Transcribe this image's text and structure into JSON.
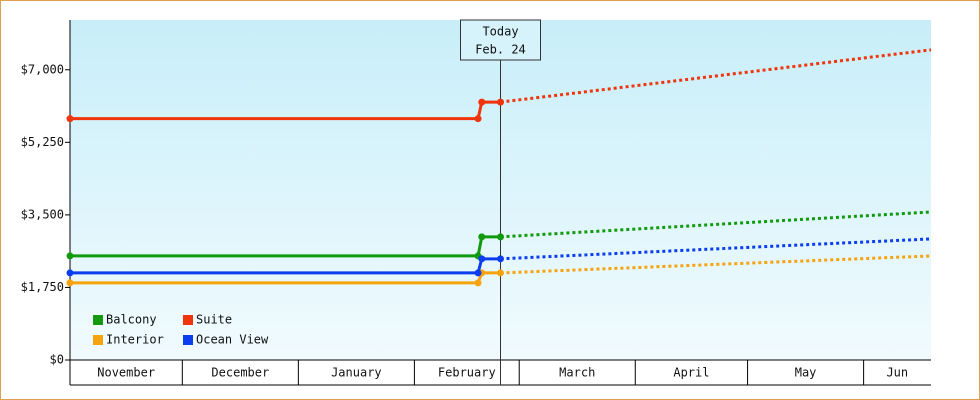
{
  "chart_data": {
    "type": "line",
    "x": [
      0,
      109,
      110,
      115,
      230
    ],
    "xlim": [
      0,
      230
    ],
    "xticks": [
      {
        "value": 0,
        "label": "November"
      },
      {
        "value": 30,
        "label": "December"
      },
      {
        "value": 61,
        "label": "January"
      },
      {
        "value": 92,
        "label": "February"
      },
      {
        "value": 120,
        "label": "March"
      },
      {
        "value": 151,
        "label": "April"
      },
      {
        "value": 181,
        "label": "May"
      },
      {
        "value": 212,
        "label": "Jun"
      }
    ],
    "ylim": [
      0,
      8200
    ],
    "yticks": [
      {
        "value": 0,
        "label": "$0"
      },
      {
        "value": 1750,
        "label": "$1,750"
      },
      {
        "value": 3500,
        "label": "$3,500"
      },
      {
        "value": 5250,
        "label": "$5,250"
      },
      {
        "value": 7000,
        "label": "$7,000"
      }
    ],
    "today": {
      "value": 115,
      "label": "Today",
      "date": "Feb. 24"
    },
    "legend": "lower left",
    "series": [
      {
        "name": "Balcony",
        "color": "#129a0e",
        "values": [
          2510,
          2510,
          2970,
          2970,
          3570
        ]
      },
      {
        "name": "Suite",
        "color": "#f0340c",
        "values": [
          5820,
          5820,
          6220,
          6220,
          7480
        ]
      },
      {
        "name": "Interior",
        "color": "#f6a30e",
        "values": [
          1860,
          1860,
          2100,
          2100,
          2510
        ]
      },
      {
        "name": "Ocean View",
        "color": "#0c3ef0",
        "values": [
          2100,
          2100,
          2440,
          2440,
          2920
        ]
      }
    ]
  }
}
